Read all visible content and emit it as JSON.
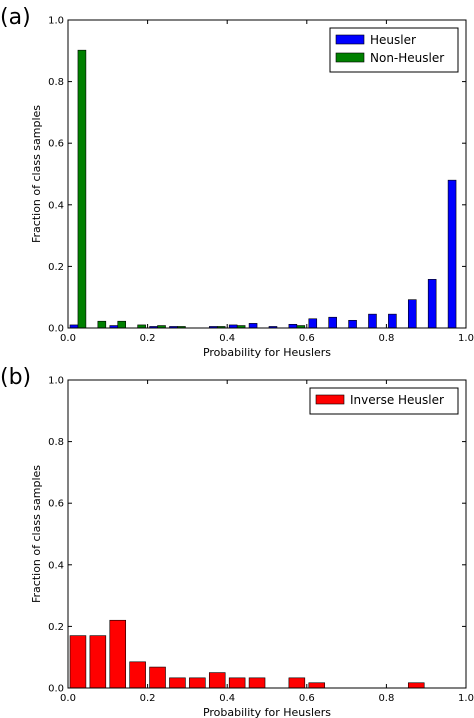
{
  "chart_data": [
    {
      "type": "bar",
      "panel_label": "(a)",
      "xlabel": "Probability for Heuslers",
      "ylabel": "Fraction of class samples",
      "xlim": [
        0,
        1
      ],
      "ylim": [
        0,
        1
      ],
      "xticks": [
        "0.0",
        "0.2",
        "0.4",
        "0.6",
        "0.8",
        "1.0"
      ],
      "yticks": [
        "0.0",
        "0.2",
        "0.4",
        "0.6",
        "0.8",
        "1.0"
      ],
      "bin_width": 0.05,
      "legend_position": "top-right",
      "series": [
        {
          "name": "Heusler",
          "color": "#0000ff",
          "bins": [
            0.0,
            0.05,
            0.1,
            0.15,
            0.2,
            0.25,
            0.3,
            0.35,
            0.4,
            0.45,
            0.5,
            0.55,
            0.6,
            0.65,
            0.7,
            0.75,
            0.8,
            0.85,
            0.9,
            0.95
          ],
          "values": [
            0.01,
            0.0,
            0.008,
            0.0,
            0.005,
            0.005,
            0.0,
            0.005,
            0.01,
            0.015,
            0.005,
            0.012,
            0.03,
            0.035,
            0.025,
            0.045,
            0.045,
            0.092,
            0.158,
            0.48
          ]
        },
        {
          "name": "Non-Heusler",
          "color": "#008000",
          "bins": [
            0.0,
            0.05,
            0.1,
            0.15,
            0.2,
            0.25,
            0.3,
            0.35,
            0.4,
            0.45,
            0.5,
            0.55,
            0.6,
            0.65,
            0.7,
            0.75,
            0.8,
            0.85,
            0.9,
            0.95
          ],
          "values": [
            0.902,
            0.022,
            0.022,
            0.01,
            0.008,
            0.005,
            0.0,
            0.005,
            0.008,
            0.0,
            0.0,
            0.008,
            0.0,
            0.0,
            0.0,
            0.0,
            0.0,
            0.0,
            0.0,
            0.0
          ]
        }
      ]
    },
    {
      "type": "bar",
      "panel_label": "(b)",
      "xlabel": "Probability for Heuslers",
      "ylabel": "Fraction of class samples",
      "xlim": [
        0,
        1
      ],
      "ylim": [
        0,
        1
      ],
      "xticks": [
        "0.0",
        "0.2",
        "0.4",
        "0.6",
        "0.8",
        "1.0"
      ],
      "yticks": [
        "0.0",
        "0.2",
        "0.4",
        "0.6",
        "0.8",
        "1.0"
      ],
      "bin_width": 0.05,
      "legend_position": "top-right",
      "series": [
        {
          "name": "Inverse Heusler",
          "color": "#ff0000",
          "bins": [
            0.0,
            0.05,
            0.1,
            0.15,
            0.2,
            0.25,
            0.3,
            0.35,
            0.4,
            0.45,
            0.5,
            0.55,
            0.6,
            0.65,
            0.7,
            0.75,
            0.8,
            0.85,
            0.9,
            0.95
          ],
          "values": [
            0.17,
            0.17,
            0.22,
            0.085,
            0.068,
            0.033,
            0.033,
            0.05,
            0.033,
            0.033,
            0.0,
            0.033,
            0.017,
            0.0,
            0.0,
            0.0,
            0.0,
            0.017,
            0.0,
            0.0
          ]
        }
      ]
    }
  ]
}
